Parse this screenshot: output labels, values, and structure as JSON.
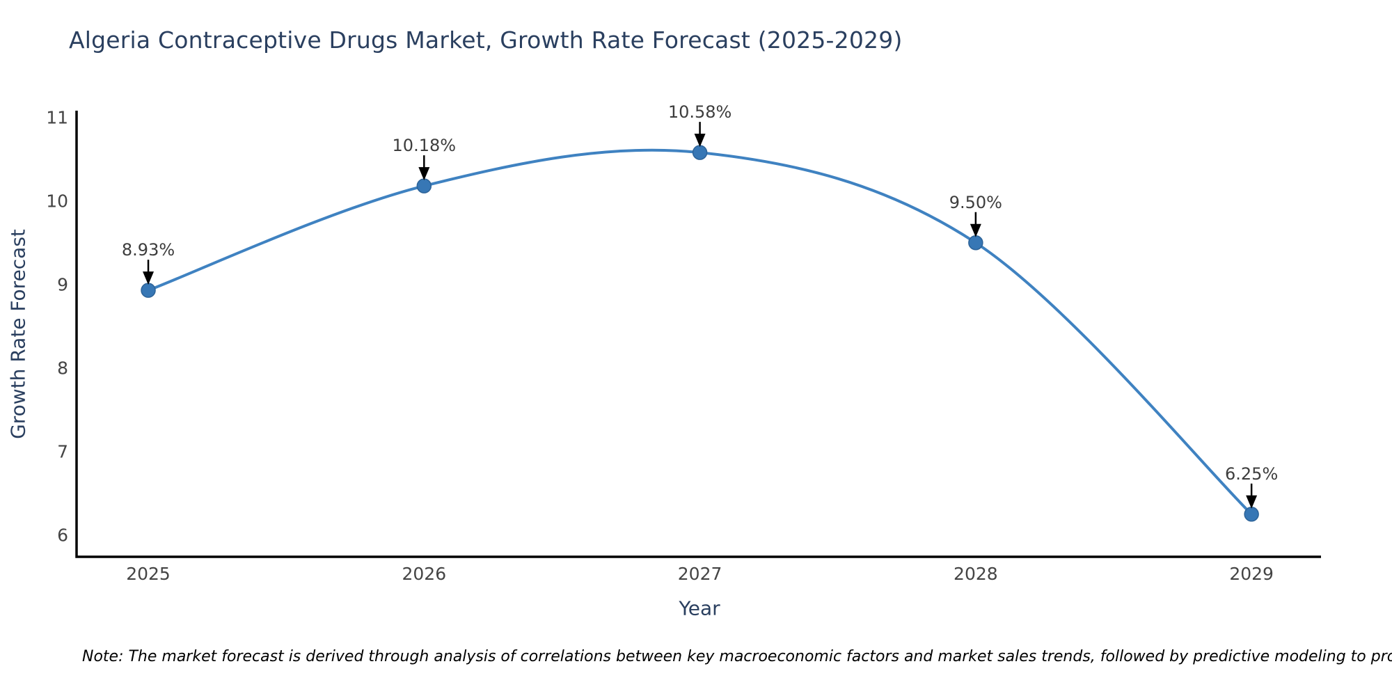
{
  "page": {
    "background": "#ffffff"
  },
  "chart_data": {
    "type": "line",
    "title": "Algeria Contraceptive Drugs Market, Growth Rate Forecast (2025-2029)",
    "xlabel": "Year",
    "ylabel": "Growth Rate Forecast",
    "x": [
      2025,
      2026,
      2027,
      2028,
      2029
    ],
    "values": [
      8.93,
      10.18,
      10.58,
      9.5,
      6.25
    ],
    "point_labels": [
      "8.93%",
      "10.18%",
      "10.58%",
      "9.50%",
      "6.25%"
    ],
    "x_ticks": [
      "2025",
      "2026",
      "2027",
      "2028",
      "2029"
    ],
    "y_ticks": [
      "6",
      "7",
      "8",
      "9",
      "10",
      "11"
    ],
    "y_tick_values": [
      6,
      7,
      8,
      9,
      10,
      11
    ],
    "xlim": [
      2024.74,
      2029.252
    ],
    "ylim": [
      5.74,
      11.081
    ],
    "line_shape": "spline",
    "grid": false,
    "legend_position": "none",
    "line_color": "#3f82c1",
    "marker_color": "#3777b5",
    "marker_edge_color": "#2d6398",
    "axis_line_color": "#000000",
    "arrow_color": "#000000",
    "title_color": "#2a3f5f",
    "tick_color": "#444444",
    "note": "Note: The market forecast is derived through analysis of correlations between key macroeconomic factors and market sales trends, followed by predictive modeling to project future sales"
  }
}
